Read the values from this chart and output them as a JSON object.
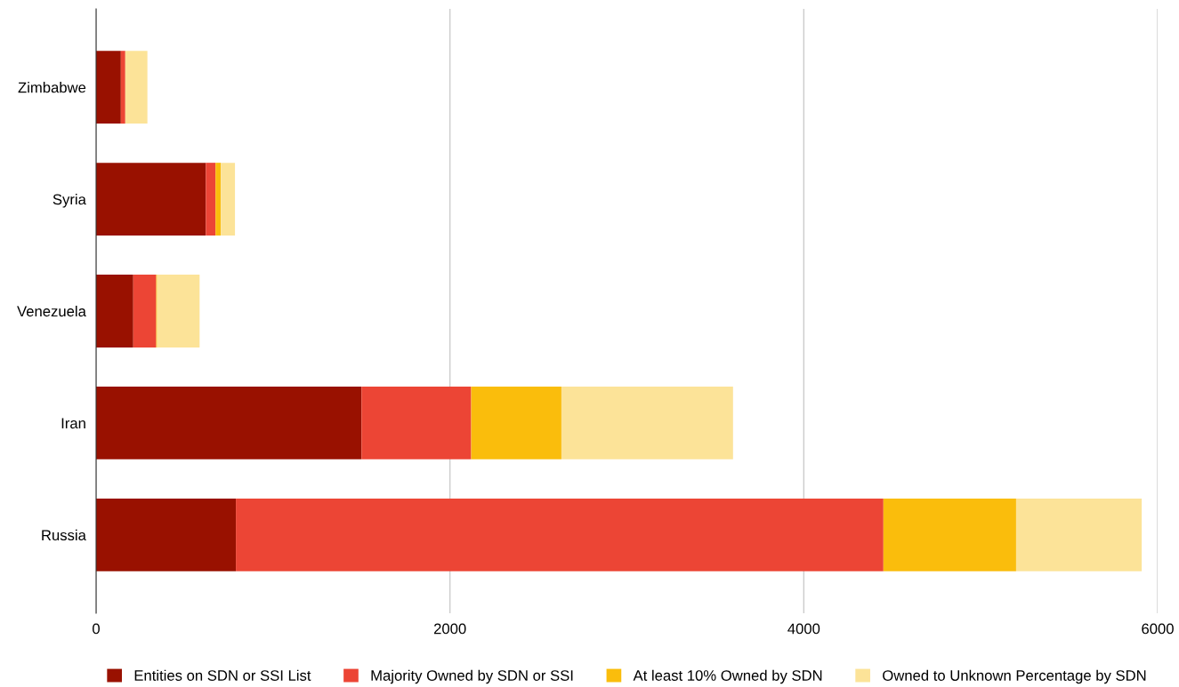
{
  "chart_data": {
    "type": "bar",
    "orientation": "horizontal",
    "stacked": true,
    "categories": [
      "Zimbabwe",
      "Syria",
      "Venezuela",
      "Iran",
      "Russia"
    ],
    "series": [
      {
        "name": "Entities on SDN or SSI List",
        "color": "#991100",
        "values": [
          140,
          620,
          210,
          1500,
          790
        ]
      },
      {
        "name": "Majority Owned by SDN or SSI",
        "color": "#ec4535",
        "values": [
          25,
          55,
          130,
          620,
          3660
        ]
      },
      {
        "name": "At least 10% Owned by SDN",
        "color": "#fabd0c",
        "values": [
          0,
          30,
          5,
          510,
          750
        ]
      },
      {
        "name": "Owned to Unknown Percentage by SDN",
        "color": "#fce398",
        "values": [
          125,
          80,
          240,
          970,
          710
        ]
      }
    ],
    "xlim": [
      0,
      6000
    ],
    "xticks": [
      0,
      2000,
      4000,
      6000
    ],
    "grid": "x",
    "legend": "bottom"
  }
}
